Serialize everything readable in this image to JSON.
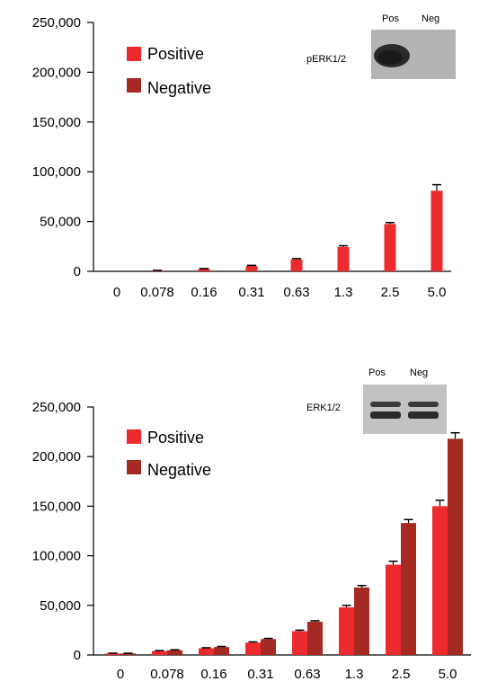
{
  "colors": {
    "positive": "#ED2A2E",
    "negative": "#A52A24",
    "axis": "#000000",
    "error": "#000000"
  },
  "chart_data": [
    {
      "type": "bar",
      "categories": [
        "0",
        "0.078",
        "0.16",
        "0.31",
        "0.63",
        "1.3",
        "2.5",
        "5.0"
      ],
      "y_ticks": [
        "0",
        "50,000",
        "100,000",
        "150,000",
        "200,000",
        "250,000"
      ],
      "ylim": [
        0,
        250000
      ],
      "legend": [
        "Positive",
        "Negative"
      ],
      "legend_position": "top-left",
      "series": [
        {
          "name": "Positive",
          "values": [
            0,
            800,
            2500,
            5500,
            12000,
            24500,
            47500,
            81000
          ],
          "errors": [
            0,
            200,
            300,
            500,
            800,
            1200,
            1500,
            6000
          ]
        },
        {
          "name": "Negative",
          "values": [
            0,
            0,
            0,
            0,
            0,
            0,
            0,
            0
          ],
          "errors": [
            0,
            0,
            0,
            0,
            0,
            0,
            0,
            0
          ]
        }
      ],
      "inset": {
        "label": "pERK1/2",
        "lanes": [
          "Pos",
          "Neg"
        ]
      }
    },
    {
      "type": "bar",
      "categories": [
        "0",
        "0.078",
        "0.16",
        "0.31",
        "0.63",
        "1.3",
        "2.5",
        "5.0"
      ],
      "y_ticks": [
        "0",
        "50,000",
        "100,000",
        "150,000",
        "200,000",
        "250,000"
      ],
      "ylim": [
        0,
        250000
      ],
      "legend": [
        "Positive",
        "Negative"
      ],
      "legend_position": "top-left",
      "series": [
        {
          "name": "Positive",
          "values": [
            1500,
            4000,
            6800,
            12500,
            24000,
            48000,
            91000,
            150000
          ],
          "errors": [
            300,
            400,
            500,
            700,
            1000,
            2000,
            3500,
            6000
          ]
        },
        {
          "name": "Negative",
          "values": [
            1500,
            4800,
            8000,
            16000,
            33500,
            68000,
            133000,
            218000
          ],
          "errors": [
            300,
            400,
            600,
            700,
            1000,
            2000,
            3500,
            6000
          ]
        }
      ],
      "inset": {
        "label": "ERK1/2",
        "lanes": [
          "Pos",
          "Neg"
        ]
      }
    }
  ]
}
